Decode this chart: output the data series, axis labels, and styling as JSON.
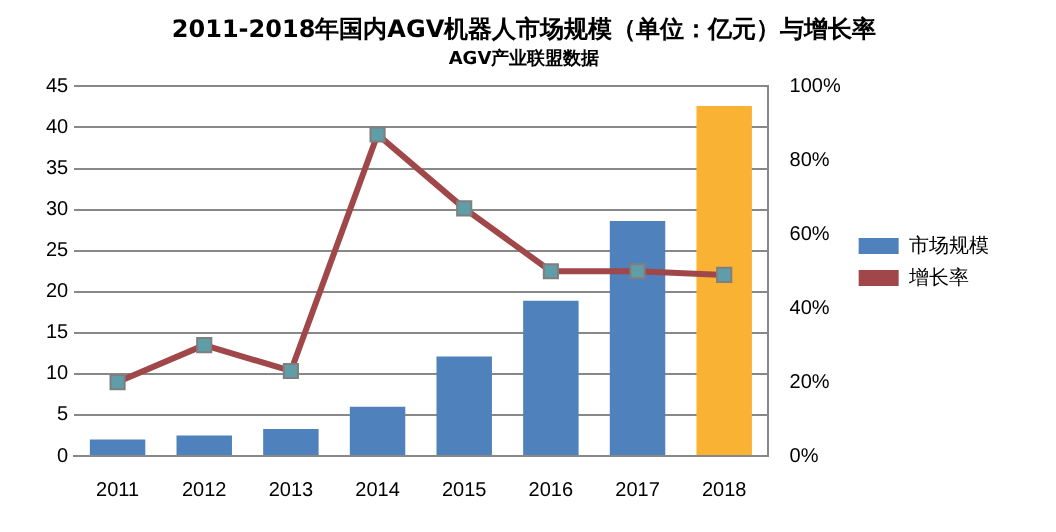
{
  "chart_data": {
    "type": "bar",
    "title": "2011-2018年国内AGV机器人市场规模（单位：亿元）与增长率",
    "subtitle": "AGV产业联盟数据",
    "categories": [
      "2011",
      "2012",
      "2013",
      "2014",
      "2015",
      "2016",
      "2017",
      "2018"
    ],
    "series": [
      {
        "name": "市场规模",
        "color": "#4f81bd",
        "colors": [
          "#4f81bd",
          "#4f81bd",
          "#4f81bd",
          "#4f81bd",
          "#4f81bd",
          "#4f81bd",
          "#4f81bd",
          "#f9b233"
        ],
        "values": [
          2.0,
          2.5,
          3.3,
          6.0,
          12.1,
          18.9,
          28.6,
          42.6
        ]
      },
      {
        "name": "增长率",
        "type": "line",
        "axis": "y2",
        "color": "#a0474a",
        "values": [
          20,
          30,
          23,
          87,
          67,
          50,
          50,
          49
        ]
      }
    ],
    "ylim": [
      0,
      45
    ],
    "yticks": [
      0,
      5,
      10,
      15,
      20,
      25,
      30,
      35,
      40,
      45
    ],
    "y2lim": [
      0,
      100
    ],
    "y2ticks": [
      {
        "value": 0,
        "label": "0%"
      },
      {
        "value": 20,
        "label": "20%"
      },
      {
        "value": 40,
        "label": "40%"
      },
      {
        "value": 60,
        "label": "60%"
      },
      {
        "value": 80,
        "label": "80%"
      },
      {
        "value": 100,
        "label": "100%"
      }
    ],
    "grid": "y",
    "legend": "right",
    "marker": "square"
  }
}
